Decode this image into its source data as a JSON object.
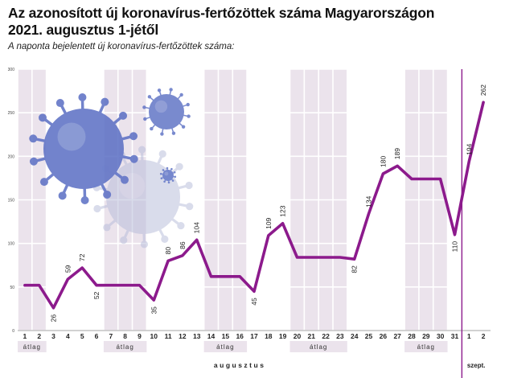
{
  "header": {
    "title_line1": "Az azonosított új koronavírus-fertőzöttek száma Magyarországon",
    "title_line2": "2021. augusztus 1-jétől",
    "subtitle": "A naponta bejelentett új koronavírus-fertőzöttek száma:"
  },
  "colors": {
    "line": "#8c1a8c",
    "band": "#ebe3ec",
    "grid": "#ffffff",
    "divider": "#8c1a8c",
    "virus": "#5b6fc4"
  },
  "icons": [
    "coronavirus-icon"
  ],
  "chart_data": {
    "type": "line",
    "title": "Az azonosított új koronavírus-fertőzöttek száma Magyarországon 2021. augusztus 1-jétől",
    "subtitle": "A naponta bejelentett új koronavírus-fertőzöttek száma:",
    "ylim": [
      0,
      300
    ],
    "yticks": [
      0,
      50,
      100,
      150,
      200,
      250,
      300
    ],
    "grid": true,
    "categories": [
      "1",
      "2",
      "3",
      "4",
      "5",
      "6",
      "7",
      "8",
      "9",
      "10",
      "11",
      "12",
      "13",
      "14",
      "15",
      "16",
      "17",
      "18",
      "19",
      "20",
      "21",
      "22",
      "23",
      "24",
      "25",
      "26",
      "27",
      "28",
      "29",
      "30",
      "31",
      "1",
      "2"
    ],
    "series": [
      {
        "values": [
          52,
          52,
          26,
          59,
          72,
          52,
          52,
          52,
          52,
          35,
          80,
          86,
          104,
          62,
          62,
          62,
          45,
          109,
          123,
          84,
          84,
          84,
          84,
          82,
          134,
          180,
          189,
          174,
          174,
          174,
          110,
          194,
          262
        ],
        "point_labels": [
          "",
          "",
          "26",
          "59",
          "72",
          "52",
          "",
          "",
          "",
          "35",
          "80",
          "86",
          "104",
          "",
          "",
          "",
          "45",
          "109",
          "123",
          "",
          "",
          "",
          "",
          "82",
          "134",
          "180",
          "189",
          "",
          "",
          "",
          "110",
          "194",
          "262"
        ]
      }
    ],
    "average_label": "átlag",
    "average_groups": [
      [
        0,
        1
      ],
      [
        6,
        8
      ],
      [
        13,
        15
      ],
      [
        19,
        22
      ],
      [
        27,
        29
      ]
    ],
    "month_labels": [
      {
        "label": "augusztus",
        "from": 0,
        "to": 30
      },
      {
        "label": "szept.",
        "from": 31,
        "to": 32
      }
    ]
  }
}
